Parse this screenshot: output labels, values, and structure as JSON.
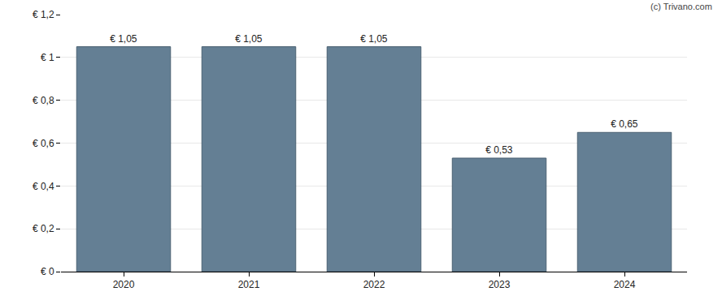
{
  "chart_data": {
    "type": "bar",
    "categories": [
      "2020",
      "2021",
      "2022",
      "2023",
      "2024"
    ],
    "values": [
      1.05,
      1.05,
      1.05,
      0.53,
      0.65
    ],
    "value_labels": [
      "€ 1,05",
      "€ 1,05",
      "€ 1,05",
      "€ 0,53",
      "€ 0,65"
    ],
    "data_labels": true,
    "color": "#647f94",
    "ylim": [
      0,
      1.2
    ],
    "yticks": [
      {
        "value": 0,
        "label": "€ 0"
      },
      {
        "value": 0.2,
        "label": "€ 0,2"
      },
      {
        "value": 0.4,
        "label": "€ 0,4"
      },
      {
        "value": 0.6,
        "label": "€ 0,6"
      },
      {
        "value": 0.8,
        "label": "€ 0,8"
      },
      {
        "value": 1,
        "label": "€ 1"
      },
      {
        "value": 1.2,
        "label": "€ 1,2"
      }
    ],
    "grid": true,
    "annotations": [
      "(c) Trivano.com"
    ]
  }
}
